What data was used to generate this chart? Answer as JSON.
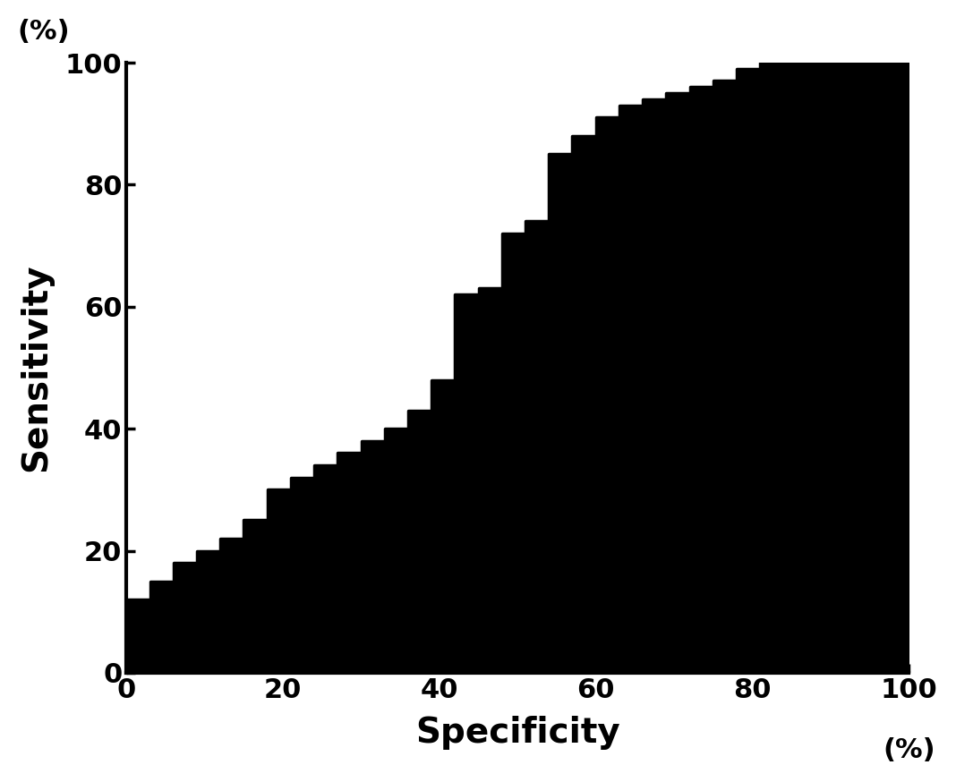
{
  "title": "",
  "xlabel": "Specificity",
  "ylabel": "Sensitivity",
  "xlabel_unit": "(%)",
  "ylabel_unit": "(%)",
  "xlim": [
    0,
    100
  ],
  "ylim": [
    0,
    100
  ],
  "xticks": [
    0,
    20,
    40,
    60,
    80,
    100
  ],
  "yticks": [
    0,
    20,
    40,
    60,
    80,
    100
  ],
  "background_color": "#ffffff",
  "curve_color": "#000000",
  "fill_color": "#000000",
  "axis_linewidth": 3.0,
  "tick_fontsize": 22,
  "label_fontsize": 28,
  "roc_points": [
    [
      0,
      0
    ],
    [
      0,
      12
    ],
    [
      3,
      12
    ],
    [
      3,
      15
    ],
    [
      6,
      15
    ],
    [
      6,
      18
    ],
    [
      9,
      18
    ],
    [
      9,
      20
    ],
    [
      12,
      20
    ],
    [
      12,
      22
    ],
    [
      15,
      22
    ],
    [
      15,
      25
    ],
    [
      18,
      25
    ],
    [
      18,
      30
    ],
    [
      21,
      30
    ],
    [
      21,
      32
    ],
    [
      24,
      32
    ],
    [
      24,
      34
    ],
    [
      27,
      34
    ],
    [
      27,
      36
    ],
    [
      30,
      36
    ],
    [
      30,
      38
    ],
    [
      33,
      38
    ],
    [
      33,
      40
    ],
    [
      36,
      40
    ],
    [
      36,
      43
    ],
    [
      39,
      43
    ],
    [
      39,
      48
    ],
    [
      42,
      48
    ],
    [
      42,
      62
    ],
    [
      45,
      62
    ],
    [
      45,
      63
    ],
    [
      48,
      63
    ],
    [
      48,
      72
    ],
    [
      51,
      72
    ],
    [
      51,
      74
    ],
    [
      54,
      74
    ],
    [
      54,
      85
    ],
    [
      57,
      85
    ],
    [
      57,
      88
    ],
    [
      60,
      88
    ],
    [
      60,
      91
    ],
    [
      63,
      91
    ],
    [
      63,
      93
    ],
    [
      66,
      93
    ],
    [
      66,
      94
    ],
    [
      69,
      94
    ],
    [
      69,
      95
    ],
    [
      72,
      95
    ],
    [
      72,
      96
    ],
    [
      75,
      96
    ],
    [
      75,
      97
    ],
    [
      78,
      97
    ],
    [
      78,
      99
    ],
    [
      81,
      99
    ],
    [
      81,
      100
    ],
    [
      90,
      100
    ],
    [
      100,
      100
    ]
  ]
}
